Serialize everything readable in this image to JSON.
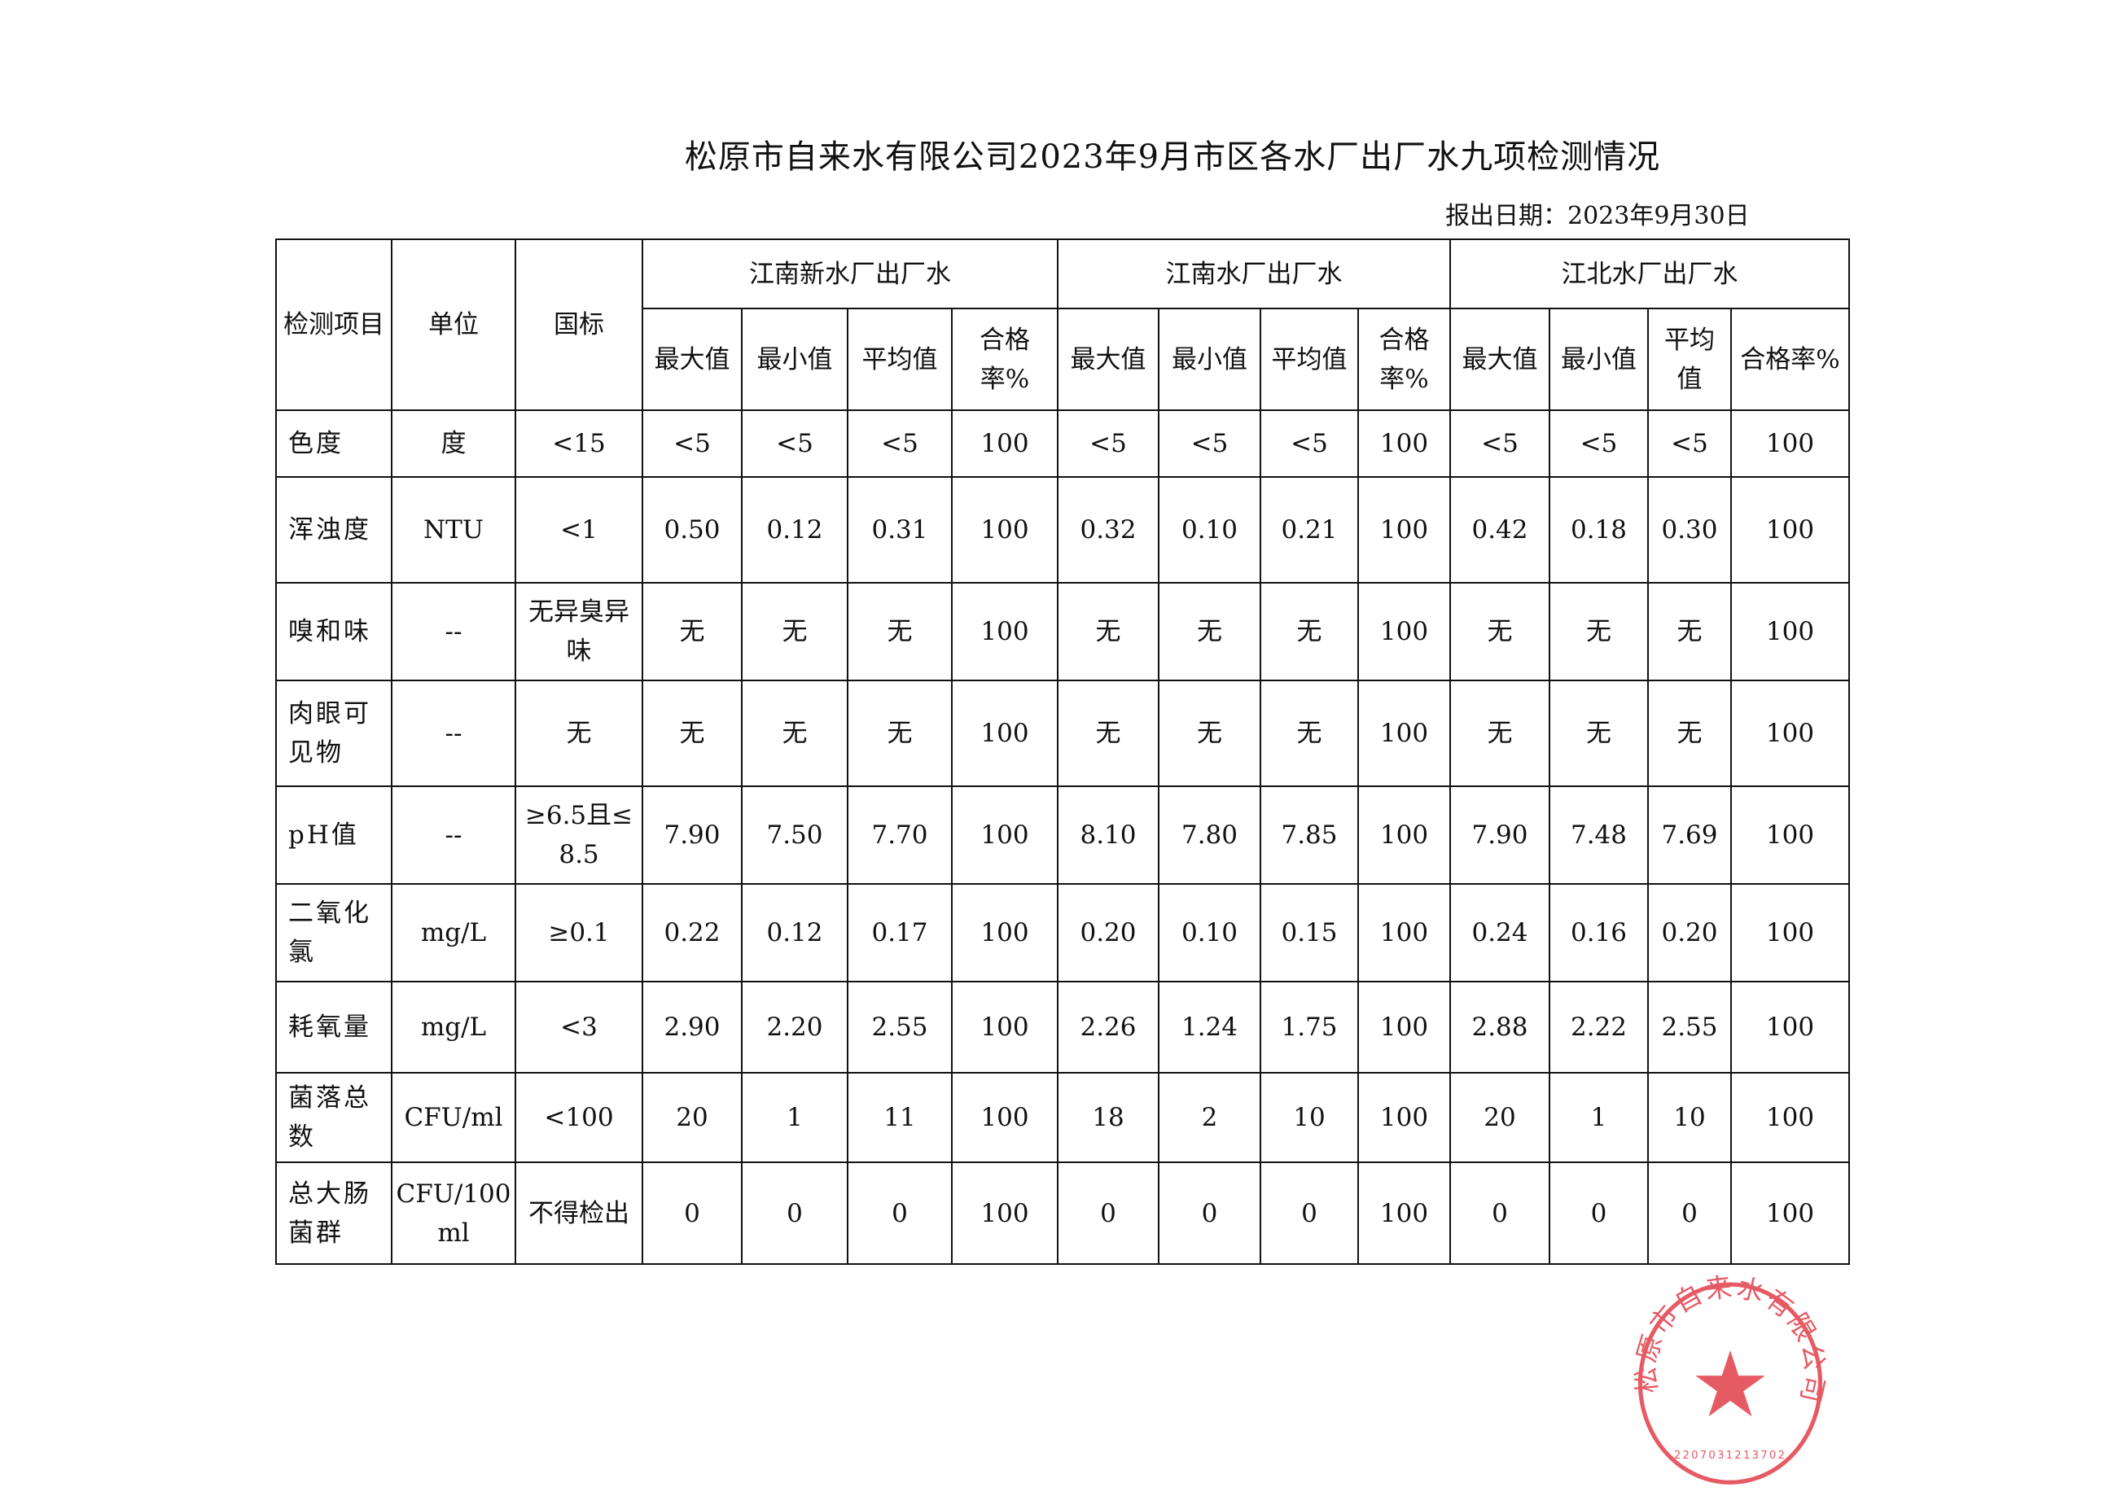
{
  "title": "松原市自来水有限公司2023年9月市区各水厂出厂水九项检测情况",
  "report_date": "报出日期：2023年9月30日",
  "seal": {
    "text": "松原市自来水有限公司",
    "number": "2207031213702",
    "color": "#e0313d"
  },
  "headers": {
    "item": "检测项目",
    "unit": "单位",
    "standard": "国标",
    "plants": [
      "江南新水厂出厂水",
      "江南水厂出厂水",
      "江北水厂出厂水"
    ],
    "sub": [
      "最大值",
      "最小值",
      "平均值",
      "合格率%"
    ]
  },
  "rows": [
    {
      "item": "色度",
      "unit": "度",
      "standard": "<15",
      "values": [
        "<5",
        "<5",
        "<5",
        "100",
        "<5",
        "<5",
        "<5",
        "100",
        "<5",
        "<5",
        "<5",
        "100"
      ]
    },
    {
      "item": "浑浊度",
      "unit": "NTU",
      "standard": "<1",
      "values": [
        "0.50",
        "0.12",
        "0.31",
        "100",
        "0.32",
        "0.10",
        "0.21",
        "100",
        "0.42",
        "0.18",
        "0.30",
        "100"
      ]
    },
    {
      "item": "嗅和味",
      "unit": "--",
      "standard": "无异臭异味",
      "values": [
        "无",
        "无",
        "无",
        "100",
        "无",
        "无",
        "无",
        "100",
        "无",
        "无",
        "无",
        "100"
      ]
    },
    {
      "item": "肉眼可见物",
      "unit": "--",
      "standard": "无",
      "values": [
        "无",
        "无",
        "无",
        "100",
        "无",
        "无",
        "无",
        "100",
        "无",
        "无",
        "无",
        "100"
      ]
    },
    {
      "item": "pH值",
      "unit": "--",
      "standard": "≥6.5且≤8.5",
      "values": [
        "7.90",
        "7.50",
        "7.70",
        "100",
        "8.10",
        "7.80",
        "7.85",
        "100",
        "7.90",
        "7.48",
        "7.69",
        "100"
      ]
    },
    {
      "item": "二氧化氯",
      "unit": "mg/L",
      "standard": "≥0.1",
      "values": [
        "0.22",
        "0.12",
        "0.17",
        "100",
        "0.20",
        "0.10",
        "0.15",
        "100",
        "0.24",
        "0.16",
        "0.20",
        "100"
      ]
    },
    {
      "item": "耗氧量",
      "unit": "mg/L",
      "standard": "<3",
      "values": [
        "2.90",
        "2.20",
        "2.55",
        "100",
        "2.26",
        "1.24",
        "1.75",
        "100",
        "2.88",
        "2.22",
        "2.55",
        "100"
      ]
    },
    {
      "item": "菌落总数",
      "unit": "CFU/ml",
      "standard": "<100",
      "values": [
        "20",
        "1",
        "11",
        "100",
        "18",
        "2",
        "10",
        "100",
        "20",
        "1",
        "10",
        "100"
      ]
    },
    {
      "item": "总大肠菌群",
      "unit": "CFU/100ml",
      "standard": "不得检出",
      "values": [
        "0",
        "0",
        "0",
        "100",
        "0",
        "0",
        "0",
        "100",
        "0",
        "0",
        "0",
        "100"
      ]
    }
  ]
}
